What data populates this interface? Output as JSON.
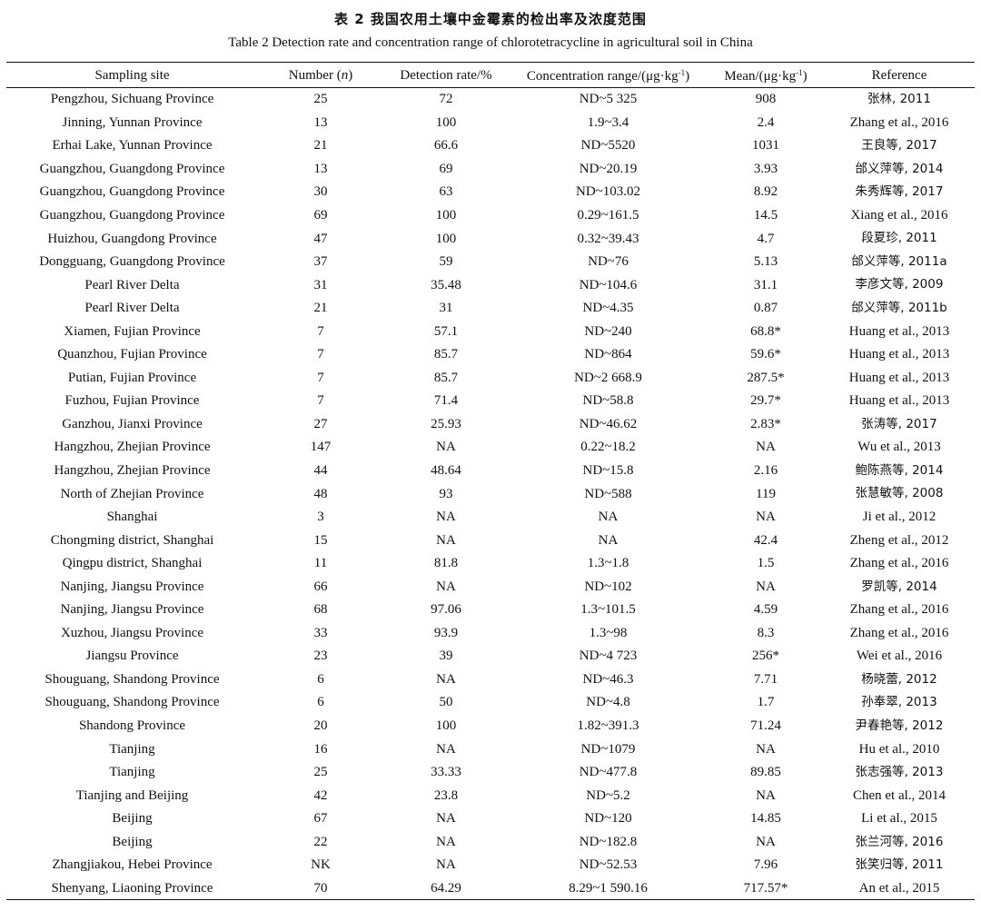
{
  "title_cn": "表 2   我国农用土壤中金霉素的检出率及浓度范围",
  "title_en": "Table 2    Detection rate and concentration range of chlorotetracycline in agricultural soil in China",
  "columns": {
    "site": "Sampling site",
    "number": "Number",
    "number_var": "n",
    "rate": "Detection rate/%",
    "conc_pre": "Concentration range/(μg·kg",
    "conc_sup": "-1",
    "conc_post": ")",
    "mean_pre": "Mean/(μg·kg",
    "mean_sup": "-1",
    "mean_post": ")",
    "ref": "Reference"
  },
  "rows": [
    {
      "site": "Pengzhou, Sichuang Province",
      "n": "25",
      "rate": "72",
      "range": "ND~5 325",
      "mean": "908",
      "ref": "张林, 2011"
    },
    {
      "site": "Jinning, Yunnan Province",
      "n": "13",
      "rate": "100",
      "range": "1.9~3.4",
      "mean": "2.4",
      "ref": "Zhang et al., 2016"
    },
    {
      "site": "Erhai Lake, Yunnan Province",
      "n": "21",
      "rate": "66.6",
      "range": "ND~5520",
      "mean": "1031",
      "ref": "王良等, 2017"
    },
    {
      "site": "Guangzhou, Guangdong Province",
      "n": "13",
      "rate": "69",
      "range": "ND~20.19",
      "mean": "3.93",
      "ref": "邰义萍等, 2014"
    },
    {
      "site": "Guangzhou, Guangdong Province",
      "n": "30",
      "rate": "63",
      "range": "ND~103.02",
      "mean": "8.92",
      "ref": "朱秀辉等, 2017"
    },
    {
      "site": "Guangzhou, Guangdong Province",
      "n": "69",
      "rate": "100",
      "range": "0.29~161.5",
      "mean": "14.5",
      "ref": "Xiang et al., 2016"
    },
    {
      "site": "Huizhou, Guangdong Province",
      "n": "47",
      "rate": "100",
      "range": "0.32~39.43",
      "mean": "4.7",
      "ref": "段夏珍, 2011"
    },
    {
      "site": "Dongguang, Guangdong Province",
      "n": "37",
      "rate": "59",
      "range": "ND~76",
      "mean": "5.13",
      "ref": "邰义萍等, 2011a"
    },
    {
      "site": "Pearl River Delta",
      "n": "31",
      "rate": "35.48",
      "range": "ND~104.6",
      "mean": "31.1",
      "ref": "李彦文等, 2009"
    },
    {
      "site": "Pearl River Delta",
      "n": "21",
      "rate": "31",
      "range": "ND~4.35",
      "mean": "0.87",
      "ref": "邰义萍等, 2011b"
    },
    {
      "site": "Xiamen, Fujian Province",
      "n": "7",
      "rate": "57.1",
      "range": "ND~240",
      "mean": "68.8*",
      "ref": "Huang et al., 2013"
    },
    {
      "site": "Quanzhou, Fujian Province",
      "n": "7",
      "rate": "85.7",
      "range": "ND~864",
      "mean": "59.6*",
      "ref": "Huang et al., 2013"
    },
    {
      "site": "Putian, Fujian Province",
      "n": "7",
      "rate": "85.7",
      "range": "ND~2 668.9",
      "mean": "287.5*",
      "ref": "Huang et al., 2013"
    },
    {
      "site": "Fuzhou, Fujian Province",
      "n": "7",
      "rate": "71.4",
      "range": "ND~58.8",
      "mean": "29.7*",
      "ref": "Huang et al., 2013"
    },
    {
      "site": "Ganzhou, Jianxi Province",
      "n": "27",
      "rate": "25.93",
      "range": "ND~46.62",
      "mean": "2.83*",
      "ref": "张涛等, 2017"
    },
    {
      "site": "Hangzhou, Zhejian Province",
      "n": "147",
      "rate": "NA",
      "range": "0.22~18.2",
      "mean": "NA",
      "ref": "Wu et al., 2013"
    },
    {
      "site": "Hangzhou, Zhejian Province",
      "n": "44",
      "rate": "48.64",
      "range": "ND~15.8",
      "mean": "2.16",
      "ref": "鲍陈燕等, 2014"
    },
    {
      "site": "North of Zhejian Province",
      "n": "48",
      "rate": "93",
      "range": "ND~588",
      "mean": "119",
      "ref": "张慧敏等, 2008"
    },
    {
      "site": "Shanghai",
      "n": "3",
      "rate": "NA",
      "range": "NA",
      "mean": "NA",
      "ref": "Ji et al., 2012"
    },
    {
      "site": "Chongming district, Shanghai",
      "n": "15",
      "rate": "NA",
      "range": "NA",
      "mean": "42.4",
      "ref": "Zheng et al., 2012"
    },
    {
      "site": "Qingpu district, Shanghai",
      "n": "11",
      "rate": "81.8",
      "range": "1.3~1.8",
      "mean": "1.5",
      "ref": "Zhang et al., 2016"
    },
    {
      "site": "Nanjing, Jiangsu Province",
      "n": "66",
      "rate": "NA",
      "range": "ND~102",
      "mean": "NA",
      "ref": "罗凯等, 2014"
    },
    {
      "site": "Nanjing, Jiangsu Province",
      "n": "68",
      "rate": "97.06",
      "range": "1.3~101.5",
      "mean": "4.59",
      "ref": "Zhang et al., 2016"
    },
    {
      "site": "Xuzhou, Jiangsu Province",
      "n": "33",
      "rate": "93.9",
      "range": "1.3~98",
      "mean": "8.3",
      "ref": "Zhang et al., 2016"
    },
    {
      "site": "Jiangsu Province",
      "n": "23",
      "rate": "39",
      "range": "ND~4 723",
      "mean": "256*",
      "ref": "Wei et al., 2016"
    },
    {
      "site": "Shouguang, Shandong Province",
      "n": "6",
      "rate": "NA",
      "range": "ND~46.3",
      "mean": "7.71",
      "ref": "杨晓蕾, 2012"
    },
    {
      "site": "Shouguang, Shandong Province",
      "n": "6",
      "rate": "50",
      "range": "ND~4.8",
      "mean": "1.7",
      "ref": "孙奉翠, 2013"
    },
    {
      "site": "Shandong Province",
      "n": "20",
      "rate": "100",
      "range": "1.82~391.3",
      "mean": "71.24",
      "ref": "尹春艳等, 2012"
    },
    {
      "site": "Tianjing",
      "n": "16",
      "rate": "NA",
      "range": "ND~1079",
      "mean": "NA",
      "ref": "Hu et al., 2010"
    },
    {
      "site": "Tianjing",
      "n": "25",
      "rate": "33.33",
      "range": "ND~477.8",
      "mean": "89.85",
      "ref": "张志强等, 2013"
    },
    {
      "site": "Tianjing and Beijing",
      "n": "42",
      "rate": "23.8",
      "range": "ND~5.2",
      "mean": "NA",
      "ref": "Chen et al., 2014"
    },
    {
      "site": "Beijing",
      "n": "67",
      "rate": "NA",
      "range": "ND~120",
      "mean": "14.85",
      "ref": "Li et al., 2015"
    },
    {
      "site": "Beijing",
      "n": "22",
      "rate": "NA",
      "range": "ND~182.8",
      "mean": "NA",
      "ref": "张兰河等, 2016"
    },
    {
      "site": "Zhangjiakou, Hebei Province",
      "n": "NK",
      "rate": "NA",
      "range": "ND~52.53",
      "mean": "7.96",
      "ref": "张笑归等, 2011"
    },
    {
      "site": "Shenyang, Liaoning Province",
      "n": "70",
      "rate": "64.29",
      "range": "8.29~1 590.16",
      "mean": "717.57*",
      "ref": "An et al., 2015"
    }
  ]
}
